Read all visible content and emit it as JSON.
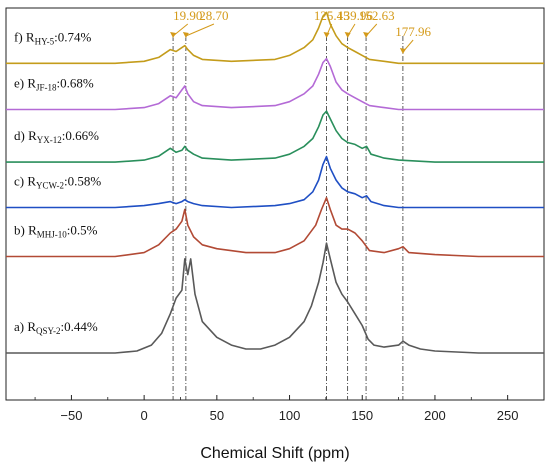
{
  "chart_data": {
    "type": "line",
    "title": "",
    "xlabel": "Chemical Shift (ppm)",
    "ylabel": "",
    "xlim": [
      -95,
      275
    ],
    "xticks": [
      -50,
      0,
      50,
      100,
      150,
      200,
      250
    ],
    "tick_labels": [
      "−50",
      "0",
      "50",
      "100",
      "150",
      "200",
      "250"
    ],
    "ylim": [
      0,
      1
    ],
    "grid": false,
    "legend": "none",
    "reference_lines": [
      19.9,
      28.7,
      125.45,
      139.96,
      152.63,
      177.96
    ],
    "annotation_color": "#d49a1a",
    "annotations": [
      {
        "text": "19.90",
        "x": 19.9
      },
      {
        "text": "28.70",
        "x": 28.7
      },
      {
        "text": "125.45",
        "x": 125.45
      },
      {
        "text": "139.96",
        "x": 139.96
      },
      {
        "text": "152.63",
        "x": 152.63
      },
      {
        "text": "177.96",
        "x": 177.96
      }
    ],
    "series": [
      {
        "label_prefix": "a) R",
        "label_sub": "QSY-2",
        "label_suffix": ":0.44%",
        "color": "#595959",
        "baseline": 0.12,
        "x": [
          -95,
          -20,
          -5,
          5,
          12,
          18,
          22,
          26,
          28,
          30,
          32,
          35,
          40,
          50,
          60,
          70,
          80,
          90,
          100,
          110,
          115,
          120,
          123,
          125.45,
          128,
          132,
          136,
          140,
          145,
          150,
          154,
          158,
          165,
          175,
          178,
          182,
          190,
          200,
          230,
          275
        ],
        "y": [
          0,
          0,
          0.005,
          0.02,
          0.05,
          0.1,
          0.14,
          0.16,
          0.24,
          0.2,
          0.24,
          0.15,
          0.08,
          0.04,
          0.02,
          0.01,
          0.01,
          0.02,
          0.04,
          0.08,
          0.12,
          0.18,
          0.23,
          0.28,
          0.24,
          0.18,
          0.15,
          0.13,
          0.1,
          0.07,
          0.035,
          0.02,
          0.015,
          0.02,
          0.03,
          0.02,
          0.01,
          0.005,
          0,
          0
        ]
      },
      {
        "label_prefix": "b) R",
        "label_sub": "MHJ-10",
        "label_suffix": ":0.5%",
        "color": "#b24a35",
        "baseline": 0.366,
        "x": [
          -95,
          -20,
          0,
          10,
          18,
          22,
          26,
          28,
          30,
          34,
          40,
          50,
          70,
          90,
          100,
          110,
          118,
          122,
          125.45,
          128,
          132,
          136,
          140,
          145,
          150,
          155,
          165,
          175,
          178,
          182,
          200,
          230,
          275
        ],
        "y": [
          0,
          0,
          0.01,
          0.03,
          0.06,
          0.07,
          0.09,
          0.12,
          0.08,
          0.05,
          0.03,
          0.02,
          0.01,
          0.01,
          0.02,
          0.04,
          0.08,
          0.12,
          0.15,
          0.12,
          0.08,
          0.07,
          0.07,
          0.06,
          0.04,
          0.015,
          0.01,
          0.02,
          0.025,
          0.01,
          0.005,
          0,
          0
        ]
      },
      {
        "label_prefix": "c) R",
        "label_sub": "YCW-2",
        "label_suffix": ":0.58%",
        "color": "#1f4fc4",
        "baseline": 0.491,
        "x": [
          -95,
          -20,
          0,
          10,
          18,
          22,
          26,
          28,
          30,
          34,
          40,
          60,
          90,
          100,
          110,
          116,
          120,
          123,
          125.45,
          128,
          132,
          136,
          140,
          145,
          150,
          153,
          156,
          165,
          175,
          200,
          275
        ],
        "y": [
          0,
          0,
          0.005,
          0.01,
          0.015,
          0.01,
          0.015,
          0.02,
          0.015,
          0.01,
          0.005,
          0,
          0.005,
          0.01,
          0.02,
          0.04,
          0.07,
          0.11,
          0.13,
          0.1,
          0.07,
          0.05,
          0.04,
          0.035,
          0.025,
          0.03,
          0.015,
          0.005,
          0,
          0,
          0
        ]
      },
      {
        "label_prefix": "d) R",
        "label_sub": "YX-12",
        "label_suffix": ":0.66%",
        "color": "#2a8f5c",
        "baseline": 0.607,
        "x": [
          -95,
          -20,
          0,
          10,
          18,
          22,
          26,
          28,
          30,
          34,
          40,
          60,
          90,
          100,
          110,
          116,
          120,
          123,
          125.45,
          128,
          132,
          136,
          140,
          145,
          150,
          153,
          156,
          165,
          175,
          200,
          275
        ],
        "y": [
          0,
          0,
          0.005,
          0.015,
          0.035,
          0.025,
          0.03,
          0.04,
          0.03,
          0.02,
          0.01,
          0.005,
          0.01,
          0.02,
          0.04,
          0.06,
          0.09,
          0.12,
          0.13,
          0.11,
          0.08,
          0.06,
          0.05,
          0.045,
          0.035,
          0.04,
          0.02,
          0.01,
          0.005,
          0,
          0
        ]
      },
      {
        "label_prefix": "e) R",
        "label_sub": "JF-18",
        "label_suffix": ":0.68%",
        "color": "#b46ad6",
        "baseline": 0.741,
        "x": [
          -95,
          -20,
          0,
          10,
          18,
          22,
          26,
          28,
          30,
          34,
          40,
          60,
          90,
          100,
          110,
          116,
          120,
          123,
          125.45,
          128,
          132,
          136,
          140,
          145,
          150,
          155,
          165,
          175,
          200,
          275
        ],
        "y": [
          0,
          0,
          0.005,
          0.015,
          0.035,
          0.03,
          0.05,
          0.06,
          0.04,
          0.02,
          0.01,
          0.005,
          0.01,
          0.02,
          0.04,
          0.06,
          0.09,
          0.12,
          0.13,
          0.11,
          0.07,
          0.05,
          0.04,
          0.03,
          0.02,
          0.01,
          0.005,
          0,
          0,
          0
        ]
      },
      {
        "label_prefix": "f) R",
        "label_sub": "HY-5",
        "label_suffix": ":0.74%",
        "color": "#c49c1b",
        "baseline": 0.859,
        "x": [
          -95,
          -20,
          0,
          10,
          18,
          22,
          26,
          28,
          30,
          34,
          40,
          60,
          90,
          100,
          110,
          116,
          120,
          123,
          125.45,
          128,
          132,
          136,
          140,
          145,
          150,
          155,
          165,
          175,
          200,
          275
        ],
        "y": [
          0,
          0,
          0.005,
          0.015,
          0.035,
          0.03,
          0.04,
          0.045,
          0.035,
          0.02,
          0.01,
          0.005,
          0.01,
          0.02,
          0.04,
          0.06,
          0.09,
          0.12,
          0.13,
          0.1,
          0.07,
          0.05,
          0.04,
          0.03,
          0.02,
          0.01,
          0.005,
          0,
          0,
          0
        ]
      }
    ]
  }
}
